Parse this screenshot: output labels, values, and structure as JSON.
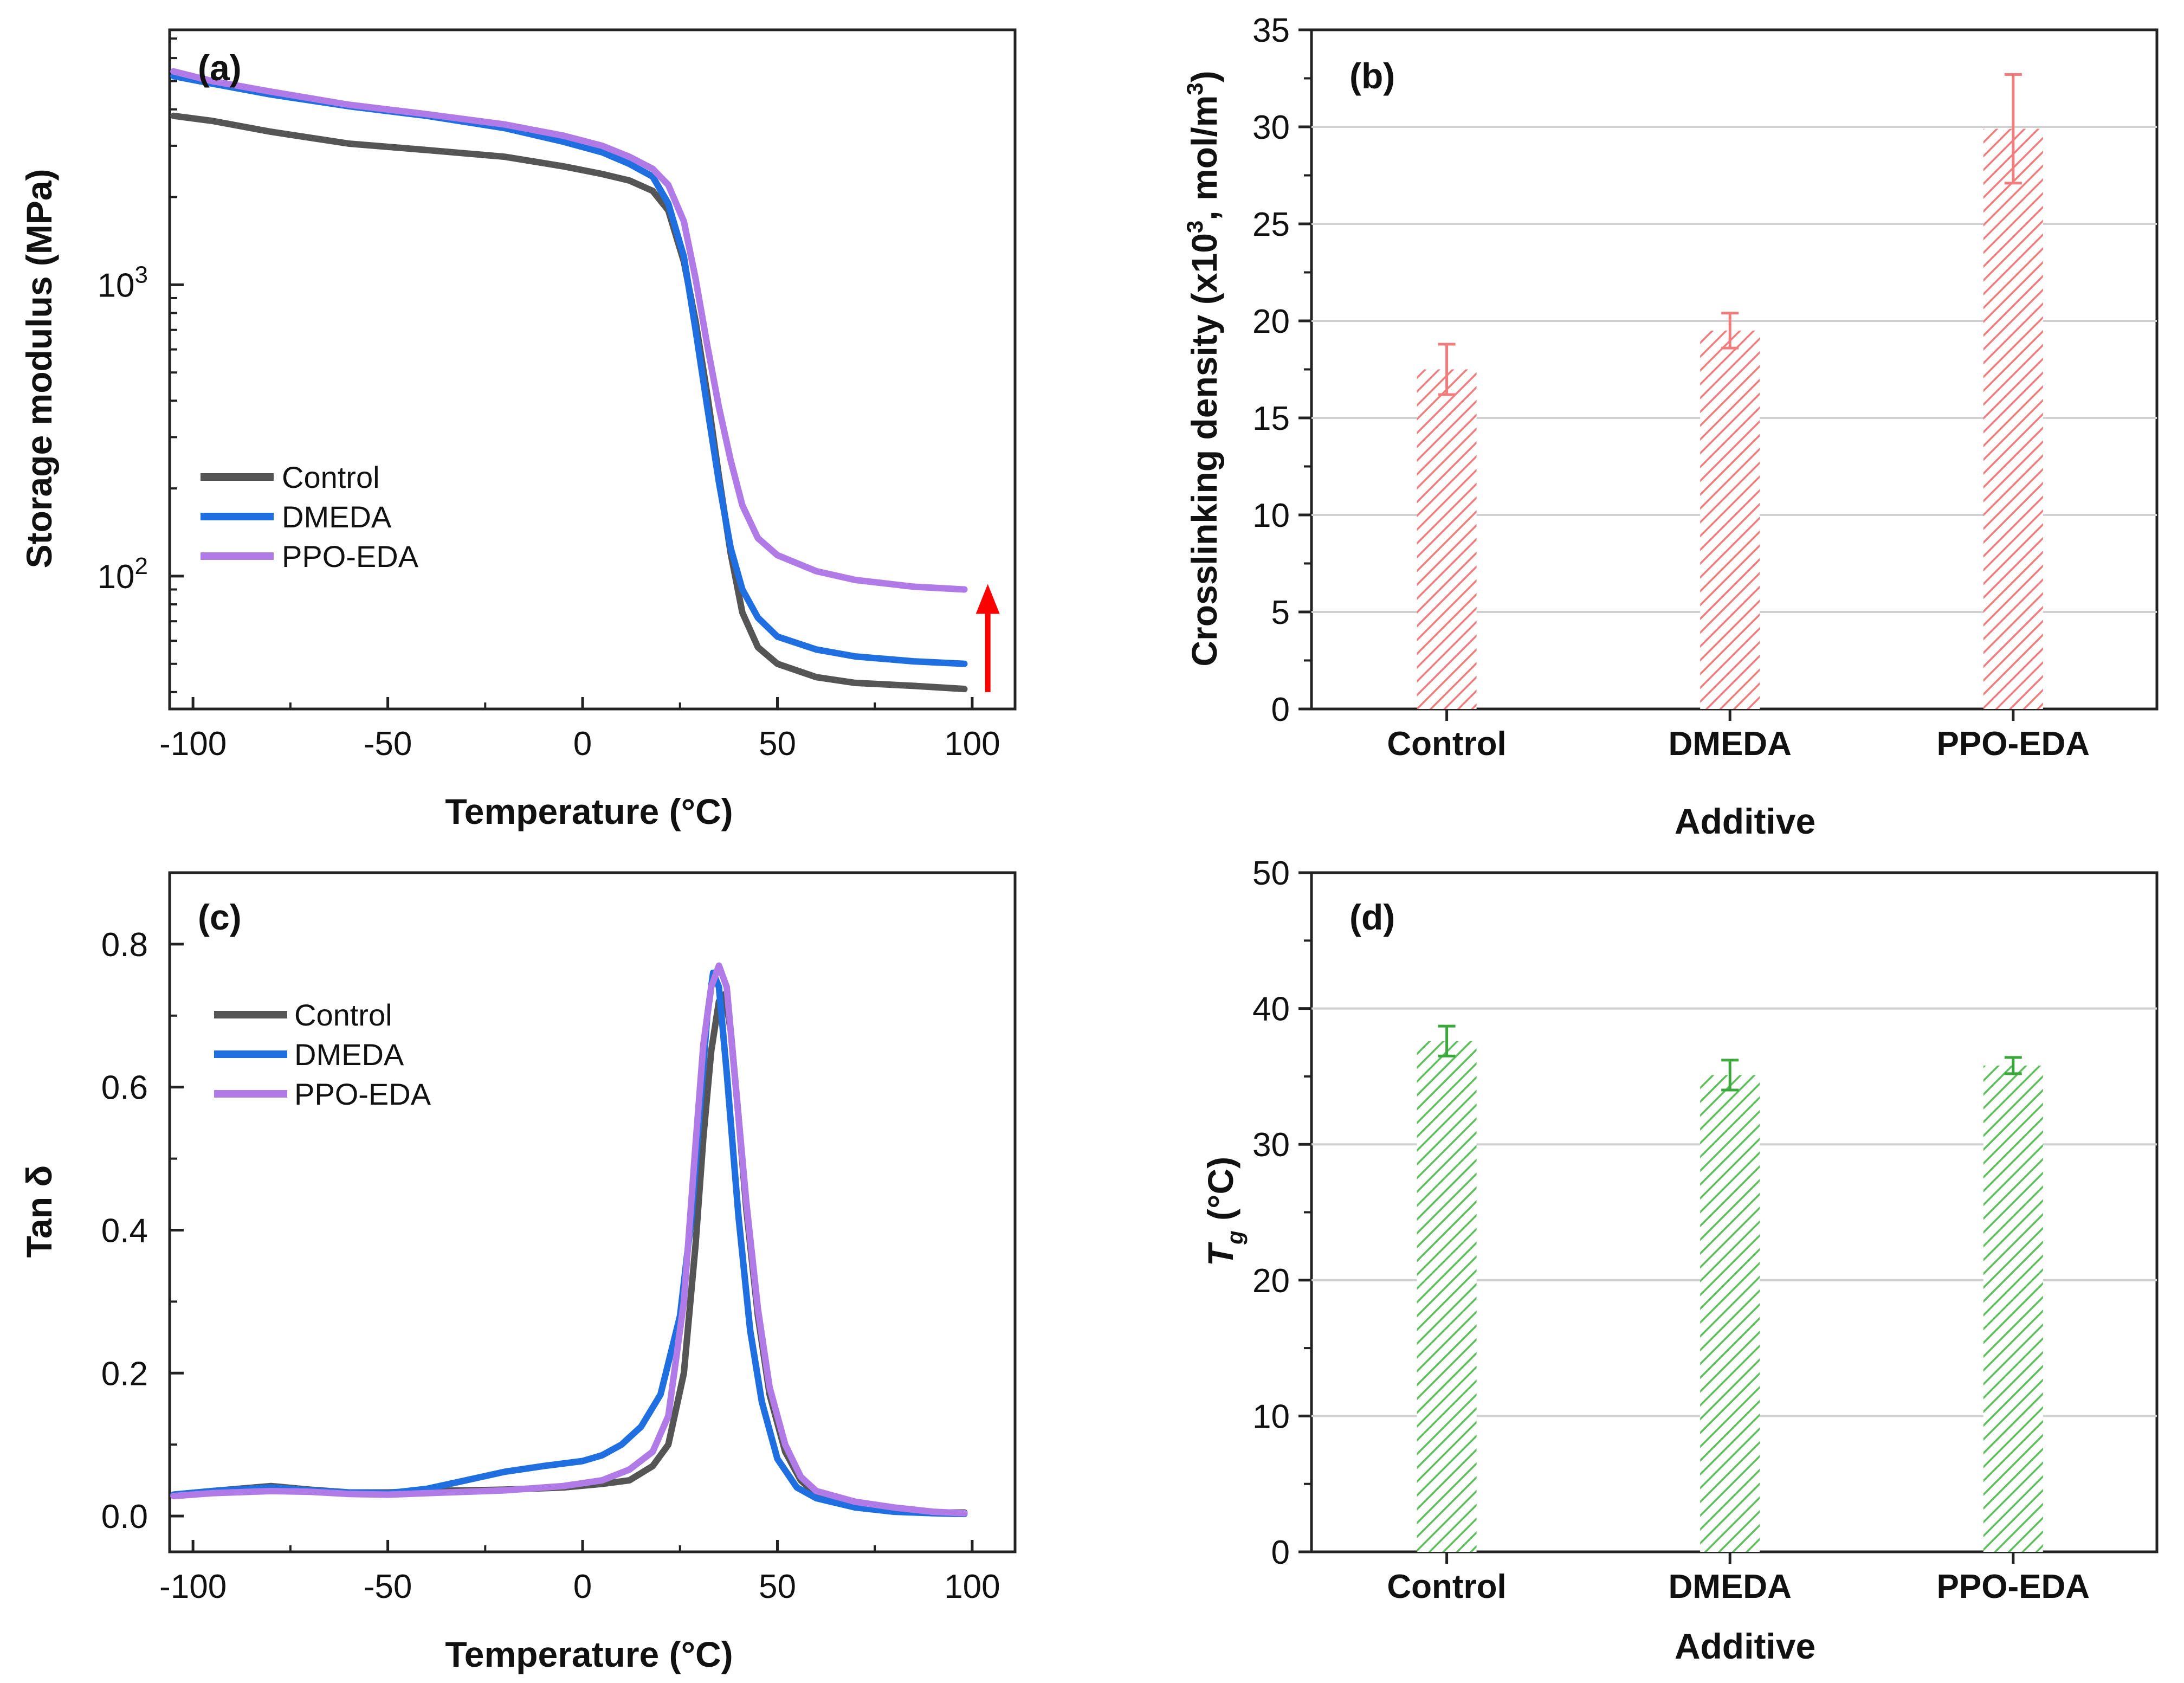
{
  "chart_data": [
    {
      "panel": "(a)",
      "type": "line",
      "xlabel": "Temperature (°C)",
      "ylabel": "Storage modulus (MPa)",
      "xlim": [
        -106,
        111
      ],
      "ylim": [
        35,
        7500
      ],
      "yscale": "log",
      "xticks": [
        -100,
        -50,
        0,
        50,
        100
      ],
      "yticks": [
        {
          "value": 100,
          "label_base": "10",
          "label_exp": "2"
        },
        {
          "value": 1000,
          "label_base": "10",
          "label_exp": "3"
        }
      ],
      "legend_position": "lower-left",
      "series": [
        {
          "name": "Control",
          "color": "#555555",
          "x": [
            -105,
            -95,
            -80,
            -60,
            -40,
            -20,
            -5,
            5,
            12,
            18,
            22,
            26,
            29,
            32,
            35,
            38,
            41,
            45,
            50,
            60,
            70,
            85,
            98
          ],
          "y": [
            3800,
            3650,
            3350,
            3050,
            2900,
            2750,
            2550,
            2400,
            2280,
            2100,
            1800,
            1200,
            750,
            420,
            220,
            120,
            75,
            57,
            50,
            45,
            43,
            42,
            41
          ]
        },
        {
          "name": "DMEDA",
          "color": "#1f6fe0",
          "x": [
            -105,
            -95,
            -80,
            -60,
            -40,
            -20,
            -5,
            5,
            12,
            18,
            22,
            26,
            29,
            32,
            35,
            38,
            41,
            45,
            50,
            60,
            70,
            85,
            98
          ],
          "y": [
            5200,
            4900,
            4500,
            4100,
            3800,
            3450,
            3100,
            2850,
            2600,
            2350,
            1900,
            1250,
            700,
            380,
            210,
            125,
            90,
            72,
            62,
            56,
            53,
            51,
            50
          ]
        },
        {
          "name": "PPO-EDA",
          "color": "#b07be6",
          "x": [
            -105,
            -95,
            -80,
            -60,
            -40,
            -20,
            -5,
            5,
            12,
            18,
            22,
            26,
            29,
            32,
            35,
            38,
            41,
            45,
            50,
            60,
            70,
            85,
            98
          ],
          "y": [
            5400,
            5000,
            4600,
            4150,
            3850,
            3550,
            3250,
            3000,
            2750,
            2500,
            2200,
            1650,
            1050,
            620,
            380,
            250,
            175,
            135,
            118,
            104,
            97,
            92,
            90
          ]
        }
      ],
      "annotation": {
        "type": "arrow",
        "direction": "up",
        "color": "#ff0000",
        "x": 104,
        "y_from": 40,
        "y_to": 90
      }
    },
    {
      "panel": "(b)",
      "type": "bar",
      "xlabel": "Additive",
      "ylabel_parts": [
        "Crosslinking density (x10",
        "3",
        ", mol/m",
        "3",
        ")"
      ],
      "categories": [
        "Control",
        "DMEDA",
        "PPO-EDA"
      ],
      "values": [
        17.5,
        19.5,
        29.9
      ],
      "errors": [
        1.3,
        0.9,
        2.8
      ],
      "ylim": [
        0,
        35
      ],
      "yticks": [
        0,
        5,
        10,
        15,
        20,
        25,
        30,
        35
      ],
      "grid": true,
      "color": "#f08080"
    },
    {
      "panel": "(c)",
      "type": "line",
      "xlabel": "Temperature (°C)",
      "ylabel": "Tan δ",
      "xlim": [
        -106,
        111
      ],
      "ylim": [
        -0.05,
        0.9
      ],
      "xticks": [
        -100,
        -50,
        0,
        50,
        100
      ],
      "yticks": [
        0.0,
        0.2,
        0.4,
        0.6,
        0.8
      ],
      "legend_position": "upper-left",
      "series": [
        {
          "name": "Control",
          "color": "#555555",
          "x": [
            -105,
            -95,
            -80,
            -70,
            -60,
            -50,
            -40,
            -20,
            -5,
            5,
            12,
            18,
            22,
            26,
            29,
            31,
            33,
            35,
            36.5,
            38,
            40,
            42,
            45,
            48,
            52,
            56,
            60,
            70,
            80,
            90,
            98
          ],
          "y": [
            0.03,
            0.035,
            0.042,
            0.037,
            0.033,
            0.033,
            0.035,
            0.037,
            0.04,
            0.045,
            0.05,
            0.07,
            0.1,
            0.2,
            0.38,
            0.53,
            0.65,
            0.72,
            0.73,
            0.68,
            0.56,
            0.43,
            0.28,
            0.17,
            0.09,
            0.05,
            0.03,
            0.015,
            0.01,
            0.005,
            0.005
          ]
        },
        {
          "name": "DMEDA",
          "color": "#1f6fe0",
          "x": [
            -105,
            -95,
            -80,
            -70,
            -60,
            -50,
            -40,
            -30,
            -20,
            -10,
            0,
            5,
            10,
            15,
            20,
            25,
            28,
            30,
            32,
            33.5,
            35,
            37,
            40,
            43,
            46,
            50,
            55,
            60,
            70,
            80,
            90,
            98
          ],
          "y": [
            0.03,
            0.035,
            0.04,
            0.036,
            0.033,
            0.032,
            0.038,
            0.05,
            0.062,
            0.07,
            0.077,
            0.085,
            0.1,
            0.125,
            0.17,
            0.28,
            0.42,
            0.56,
            0.7,
            0.76,
            0.74,
            0.62,
            0.42,
            0.26,
            0.16,
            0.08,
            0.04,
            0.025,
            0.012,
            0.006,
            0.004,
            0.003
          ]
        },
        {
          "name": "PPO-EDA",
          "color": "#b07be6",
          "x": [
            -105,
            -95,
            -80,
            -70,
            -60,
            -50,
            -40,
            -20,
            -5,
            5,
            12,
            18,
            22,
            26,
            29,
            31,
            33,
            35,
            37,
            39,
            42,
            45,
            48,
            52,
            56,
            60,
            70,
            80,
            90,
            98
          ],
          "y": [
            0.028,
            0.032,
            0.035,
            0.034,
            0.031,
            0.03,
            0.032,
            0.036,
            0.042,
            0.05,
            0.065,
            0.09,
            0.14,
            0.3,
            0.52,
            0.66,
            0.74,
            0.77,
            0.74,
            0.62,
            0.44,
            0.29,
            0.18,
            0.1,
            0.055,
            0.035,
            0.02,
            0.012,
            0.006,
            0.004
          ]
        }
      ]
    },
    {
      "panel": "(d)",
      "type": "bar",
      "xlabel": "Additive",
      "ylabel_parts": [
        "T",
        "g",
        " (°C)"
      ],
      "categories": [
        "Control",
        "DMEDA",
        "PPO-EDA"
      ],
      "values": [
        37.6,
        35.1,
        35.8
      ],
      "errors": [
        1.1,
        1.1,
        0.6
      ],
      "ylim": [
        0,
        50
      ],
      "yticks": [
        0,
        10,
        20,
        30,
        40,
        50
      ],
      "grid": true,
      "color": "#5cbf5c"
    }
  ]
}
